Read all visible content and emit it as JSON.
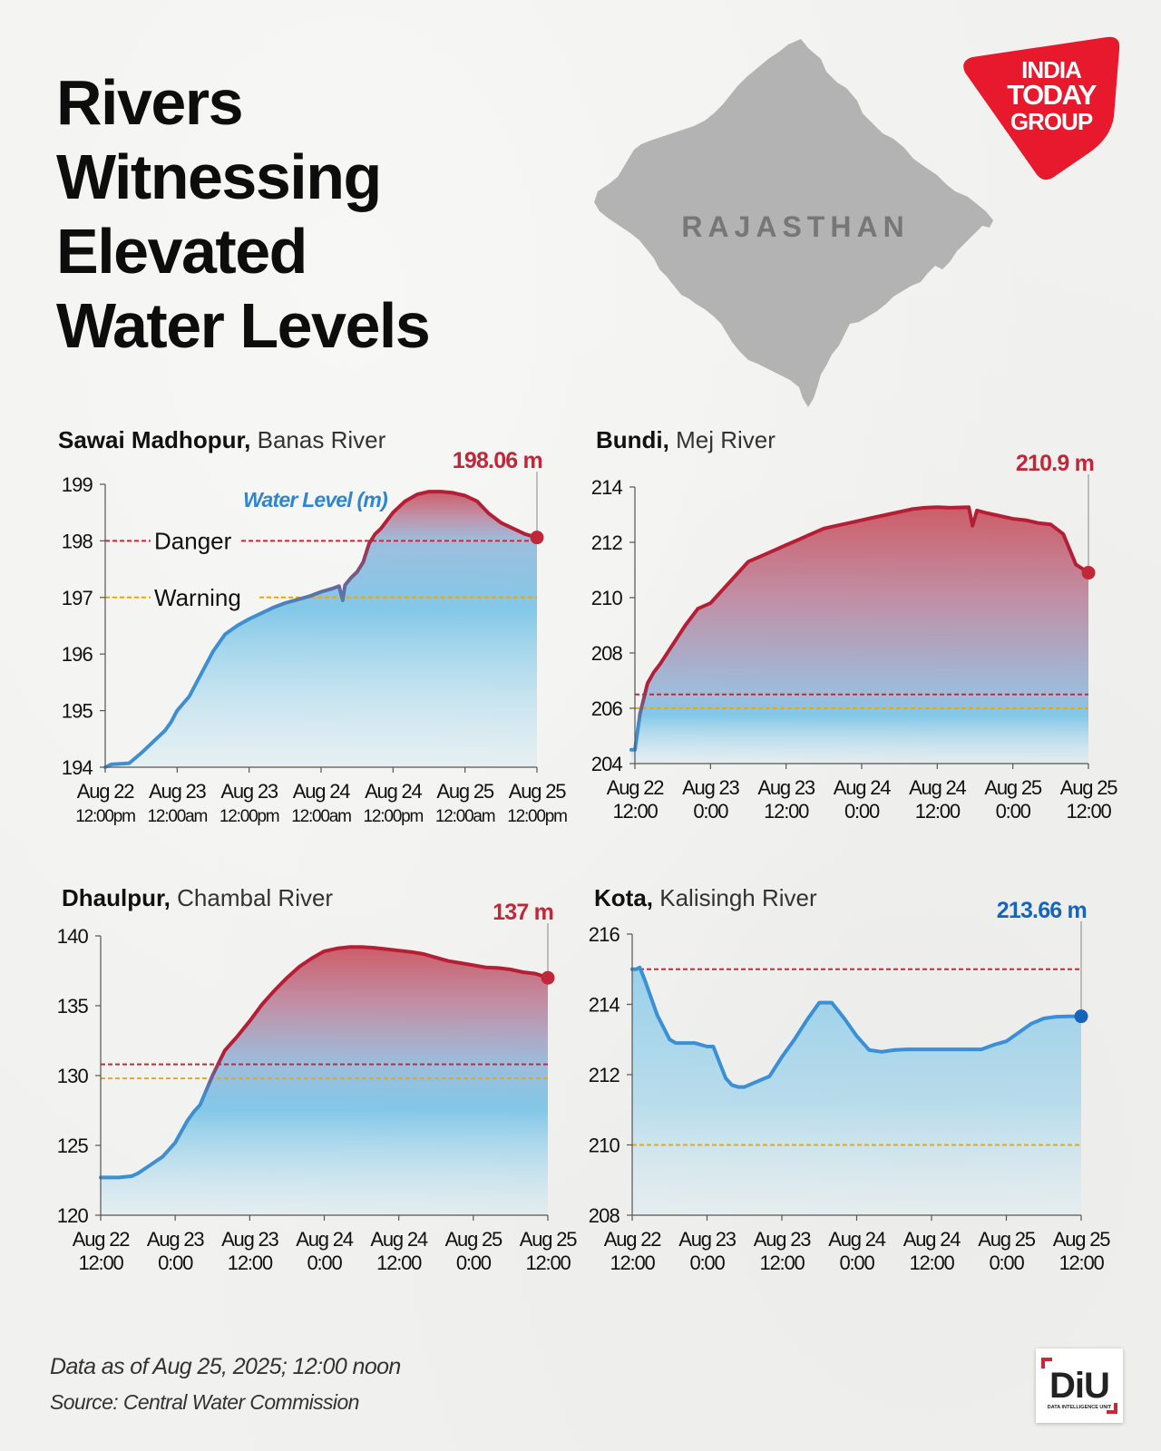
{
  "title": [
    "Rivers",
    "Witnessing",
    "Elevated",
    "Water Levels"
  ],
  "map": {
    "label": "RAJASTHAN",
    "fill": "#b3b3b3",
    "label_color": "#777777"
  },
  "logo": {
    "lines": [
      "INDIA",
      "TODAY",
      "GROUP"
    ],
    "color": "#e8192c"
  },
  "colors": {
    "danger": "#c8283a",
    "warning": "#e8a90f",
    "blue": "#3b8fd6",
    "value_red": "#c0283a",
    "value_blue": "#1565b8"
  },
  "chart_data": [
    {
      "id": "sawai",
      "type": "area",
      "place": "Sawai Madhopur",
      "river": "Banas River",
      "series_label": "Water Level (m)",
      "ylim": [
        194,
        199
      ],
      "yticks": [
        194,
        195,
        196,
        197,
        198,
        199
      ],
      "xlim": [
        0,
        72
      ],
      "xticks": [
        {
          "x": 0,
          "l1": "Aug 22",
          "l2": "12:00pm"
        },
        {
          "x": 12,
          "l1": "Aug 23",
          "l2": "12:00am"
        },
        {
          "x": 24,
          "l1": "Aug 23",
          "l2": "12:00pm"
        },
        {
          "x": 36,
          "l1": "Aug 24",
          "l2": "12:00am"
        },
        {
          "x": 48,
          "l1": "Aug 24",
          "l2": "12:00pm"
        },
        {
          "x": 60,
          "l1": "Aug 25",
          "l2": "12:00am"
        },
        {
          "x": 72,
          "l1": "Aug 25",
          "l2": "12:00pm"
        }
      ],
      "danger": 198,
      "warning": 197,
      "danger_label": "Danger",
      "warning_label": "Warning",
      "x": [
        0,
        1,
        4,
        6,
        8,
        10,
        11,
        12,
        14,
        16,
        18,
        20,
        22,
        24,
        26,
        28,
        30,
        32,
        34,
        36,
        38,
        39,
        39.6,
        40,
        41,
        42,
        43,
        44,
        45,
        46,
        48,
        50,
        52,
        54,
        56,
        58,
        60,
        62,
        64,
        66,
        68,
        70,
        72
      ],
      "y": [
        194.0,
        194.05,
        194.07,
        194.25,
        194.45,
        194.65,
        194.8,
        195.0,
        195.25,
        195.65,
        196.05,
        196.35,
        196.5,
        196.62,
        196.72,
        196.82,
        196.9,
        196.96,
        197.02,
        197.1,
        197.16,
        197.2,
        196.95,
        197.22,
        197.35,
        197.45,
        197.62,
        197.95,
        198.12,
        198.22,
        198.5,
        198.7,
        198.82,
        198.87,
        198.87,
        198.85,
        198.8,
        198.7,
        198.48,
        198.32,
        198.22,
        198.12,
        198.06
      ],
      "value_label": "198.06 m",
      "value_color": "red"
    },
    {
      "id": "bundi",
      "type": "area",
      "place": "Bundi",
      "river": "Mej River",
      "ylim": [
        204,
        214
      ],
      "yticks": [
        204,
        206,
        208,
        210,
        212,
        214
      ],
      "xlim": [
        0,
        72
      ],
      "xticks": [
        {
          "x": 0,
          "l1": "Aug 22",
          "l2": "12:00"
        },
        {
          "x": 12,
          "l1": "Aug 23",
          "l2": "0:00"
        },
        {
          "x": 24,
          "l1": "Aug 23",
          "l2": "12:00"
        },
        {
          "x": 36,
          "l1": "Aug 24",
          "l2": "0:00"
        },
        {
          "x": 48,
          "l1": "Aug 24",
          "l2": "12:00"
        },
        {
          "x": 60,
          "l1": "Aug 25",
          "l2": "0:00"
        },
        {
          "x": 72,
          "l1": "Aug 25",
          "l2": "12:00"
        }
      ],
      "danger": 206.5,
      "warning": 206,
      "x": [
        -1.5,
        0,
        0.8,
        2,
        3,
        4,
        6,
        8,
        10,
        12,
        14,
        16,
        18,
        20,
        22,
        24,
        26,
        28,
        30,
        32,
        34,
        36,
        38,
        40,
        42,
        44,
        46,
        48,
        50,
        53,
        53.6,
        54.3,
        56,
        58,
        60,
        62,
        64,
        66,
        68,
        70,
        72
      ],
      "y": [
        204.5,
        204.5,
        205.8,
        206.9,
        207.3,
        207.6,
        208.3,
        209.0,
        209.6,
        209.8,
        210.3,
        210.8,
        211.3,
        211.5,
        211.7,
        211.9,
        212.1,
        212.3,
        212.5,
        212.6,
        212.7,
        212.8,
        212.9,
        213.0,
        213.1,
        213.2,
        213.25,
        213.27,
        213.25,
        213.27,
        212.6,
        213.15,
        213.05,
        212.95,
        212.85,
        212.8,
        212.7,
        212.65,
        212.3,
        211.2,
        210.9
      ],
      "value_label": "210.9 m",
      "value_color": "red"
    },
    {
      "id": "dhaulpur",
      "type": "area",
      "place": "Dhaulpur",
      "river": "Chambal River",
      "ylim": [
        120,
        140
      ],
      "yticks": [
        120,
        125,
        130,
        135,
        140
      ],
      "xlim": [
        0,
        72
      ],
      "xticks": [
        {
          "x": 0,
          "l1": "Aug 22",
          "l2": "12:00"
        },
        {
          "x": 12,
          "l1": "Aug 23",
          "l2": "0:00"
        },
        {
          "x": 24,
          "l1": "Aug 23",
          "l2": "12:00"
        },
        {
          "x": 36,
          "l1": "Aug 24",
          "l2": "0:00"
        },
        {
          "x": 48,
          "l1": "Aug 24",
          "l2": "12:00"
        },
        {
          "x": 60,
          "l1": "Aug 25",
          "l2": "0:00"
        },
        {
          "x": 72,
          "l1": "Aug 25",
          "l2": "12:00"
        }
      ],
      "danger": 130.8,
      "warning": 129.8,
      "x": [
        0,
        3,
        5,
        6,
        8,
        10,
        12,
        13,
        14,
        15,
        16,
        18,
        20,
        22,
        24,
        26,
        28,
        30,
        32,
        34,
        36,
        38,
        40,
        42,
        44,
        46,
        48,
        50,
        52,
        54,
        56,
        58,
        60,
        62,
        64,
        66,
        68,
        70,
        72
      ],
      "y": [
        122.7,
        122.7,
        122.8,
        123.0,
        123.6,
        124.2,
        125.2,
        126.0,
        126.8,
        127.4,
        127.9,
        130.0,
        131.8,
        132.8,
        133.9,
        135.1,
        136.1,
        137.0,
        137.8,
        138.4,
        138.9,
        139.1,
        139.2,
        139.2,
        139.15,
        139.05,
        138.95,
        138.85,
        138.7,
        138.45,
        138.2,
        138.05,
        137.9,
        137.75,
        137.7,
        137.6,
        137.4,
        137.3,
        137.0
      ],
      "value_label": "137 m",
      "value_color": "red"
    },
    {
      "id": "kota",
      "type": "area",
      "place": "Kota",
      "river": "Kalisingh River",
      "ylim": [
        208,
        216
      ],
      "yticks": [
        208,
        210,
        212,
        214,
        216
      ],
      "xlim": [
        0,
        72
      ],
      "xticks": [
        {
          "x": 0,
          "l1": "Aug 22",
          "l2": "12:00"
        },
        {
          "x": 12,
          "l1": "Aug 23",
          "l2": "0:00"
        },
        {
          "x": 24,
          "l1": "Aug 23",
          "l2": "12:00"
        },
        {
          "x": 36,
          "l1": "Aug 24",
          "l2": "0:00"
        },
        {
          "x": 48,
          "l1": "Aug 24",
          "l2": "12:00"
        },
        {
          "x": 60,
          "l1": "Aug 25",
          "l2": "0:00"
        },
        {
          "x": 72,
          "l1": "Aug 25",
          "l2": "12:00"
        }
      ],
      "danger": 215,
      "warning": 210,
      "x": [
        0,
        0.6,
        1.2,
        2,
        4,
        6,
        7,
        8,
        10,
        12,
        13,
        15,
        16,
        17,
        18,
        20,
        22,
        24,
        26,
        28,
        30,
        32,
        34,
        36,
        38,
        40,
        42,
        44,
        46,
        48,
        50,
        52,
        54,
        56,
        58,
        60,
        62,
        64,
        66,
        68,
        70,
        72
      ],
      "y": [
        215.0,
        215.0,
        215.05,
        214.7,
        213.7,
        213.0,
        212.9,
        212.9,
        212.9,
        212.8,
        212.8,
        211.9,
        211.7,
        211.65,
        211.65,
        211.8,
        211.95,
        212.5,
        213.0,
        213.55,
        214.05,
        214.05,
        213.6,
        213.1,
        212.7,
        212.65,
        212.7,
        212.72,
        212.72,
        212.72,
        212.72,
        212.72,
        212.72,
        212.72,
        212.85,
        212.95,
        213.2,
        213.45,
        213.6,
        213.65,
        213.66,
        213.66
      ],
      "value_label": "213.66 m",
      "value_color": "blue"
    }
  ],
  "footer": {
    "note": "Data as of Aug 25, 2025; 12:00 noon",
    "source": "Source: Central Water Commission"
  },
  "diu": {
    "letters": "DiU",
    "caption": "DATA INTELLIGENCE UNIT"
  }
}
